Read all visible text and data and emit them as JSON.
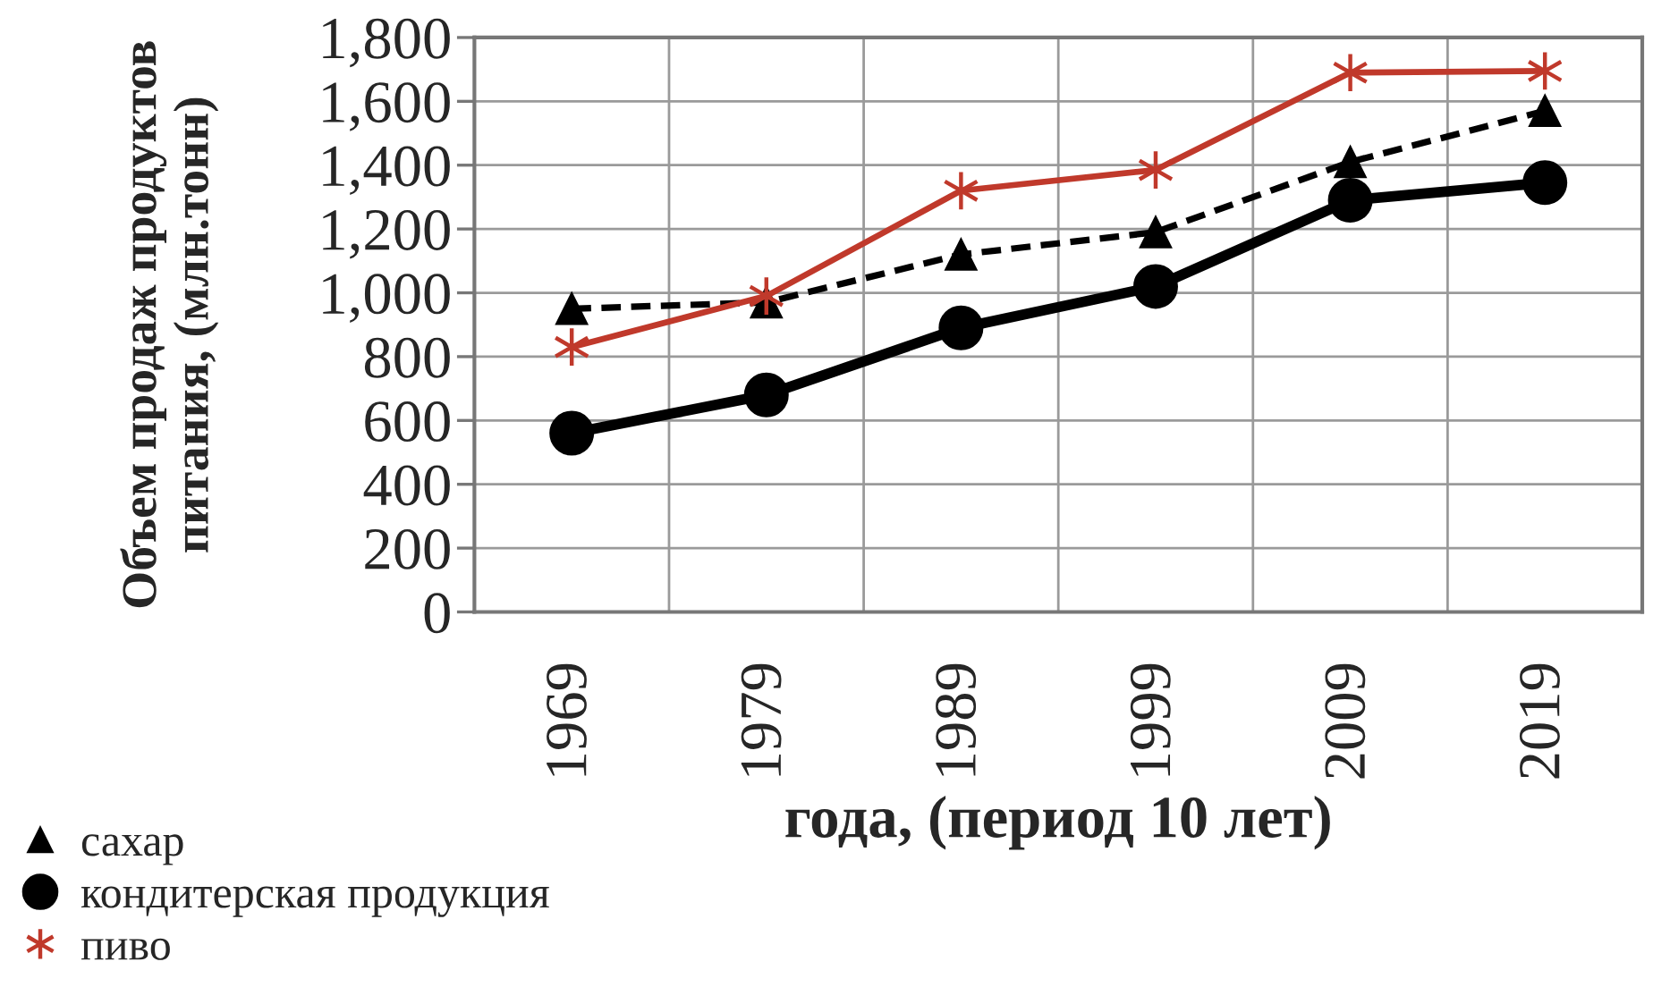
{
  "chart_data": {
    "type": "line",
    "categories": [
      "1969",
      "1979",
      "1989",
      "1999",
      "2009",
      "2019"
    ],
    "xlabel": "года, (период 10 лет)",
    "ylabel": "Объем продаж продуктов питания, (млн.тонн)",
    "ylim": [
      0,
      1800
    ],
    "yticks": [
      0,
      200,
      400,
      600,
      800,
      {
        "value": 1000,
        "label": "1,000"
      },
      {
        "value": 1200,
        "label": "1,200"
      },
      {
        "value": 1400,
        "label": "1,400"
      },
      {
        "value": 1600,
        "label": "1,600"
      },
      {
        "value": 1800,
        "label": "1,800"
      }
    ],
    "grid": true,
    "legend": "bottom left",
    "series": [
      {
        "name": "сахар",
        "color": "#000000",
        "marker": "triangle",
        "line_style": "dashed",
        "values": [
          950,
          970,
          1120,
          1190,
          1410,
          1570
        ]
      },
      {
        "name": "кондитерская продукция",
        "color": "#000000",
        "marker": "circle",
        "line_style": "solid",
        "values": [
          560,
          680,
          890,
          1020,
          1290,
          1345
        ]
      },
      {
        "name": "пиво",
        "color": "#c0392b",
        "marker": "cross",
        "line_style": "solid",
        "values": [
          830,
          990,
          1320,
          1385,
          1690,
          1695
        ]
      }
    ]
  }
}
